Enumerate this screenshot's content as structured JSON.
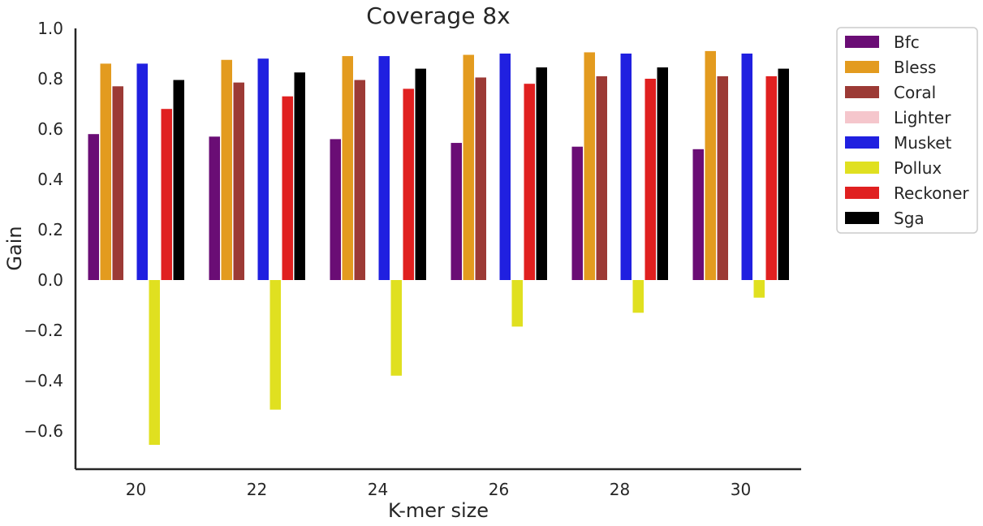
{
  "chart_data": {
    "type": "bar",
    "title": "Coverage 8x",
    "xlabel": "K-mer size",
    "ylabel": "Gain",
    "ylim": [
      -0.75,
      1.0
    ],
    "yticks": [
      "1.0",
      "0.8",
      "0.6",
      "0.4",
      "0.2",
      "0.0",
      "−0.2",
      "−0.4",
      "−0.6"
    ],
    "ytick_values": [
      1.0,
      0.8,
      0.6,
      0.4,
      0.2,
      0.0,
      -0.2,
      -0.4,
      -0.6
    ],
    "categories": [
      "20",
      "22",
      "24",
      "26",
      "28",
      "30"
    ],
    "grid": false,
    "legend_position": "outside-right",
    "series": [
      {
        "name": "Bfc",
        "color": "#6a0d75",
        "values": [
          0.58,
          0.57,
          0.56,
          0.545,
          0.53,
          0.52
        ]
      },
      {
        "name": "Bless",
        "color": "#e39b1f",
        "values": [
          0.86,
          0.875,
          0.89,
          0.895,
          0.905,
          0.91
        ]
      },
      {
        "name": "Coral",
        "color": "#9c3a35",
        "values": [
          0.77,
          0.785,
          0.795,
          0.805,
          0.81,
          0.81
        ]
      },
      {
        "name": "Lighter",
        "color": "#f5c6cc",
        "values": [
          0,
          0,
          0,
          0,
          0,
          0
        ]
      },
      {
        "name": "Musket",
        "color": "#2020e0",
        "values": [
          0.86,
          0.88,
          0.89,
          0.9,
          0.9,
          0.9
        ]
      },
      {
        "name": "Pollux",
        "color": "#e0e020",
        "values": [
          -0.655,
          -0.515,
          -0.38,
          -0.185,
          -0.13,
          -0.07
        ]
      },
      {
        "name": "Reckoner",
        "color": "#e02020",
        "values": [
          0.68,
          0.73,
          0.76,
          0.78,
          0.8,
          0.81
        ]
      },
      {
        "name": "Sga",
        "color": "#000000",
        "values": [
          0.795,
          0.825,
          0.84,
          0.845,
          0.845,
          0.84
        ]
      }
    ]
  }
}
